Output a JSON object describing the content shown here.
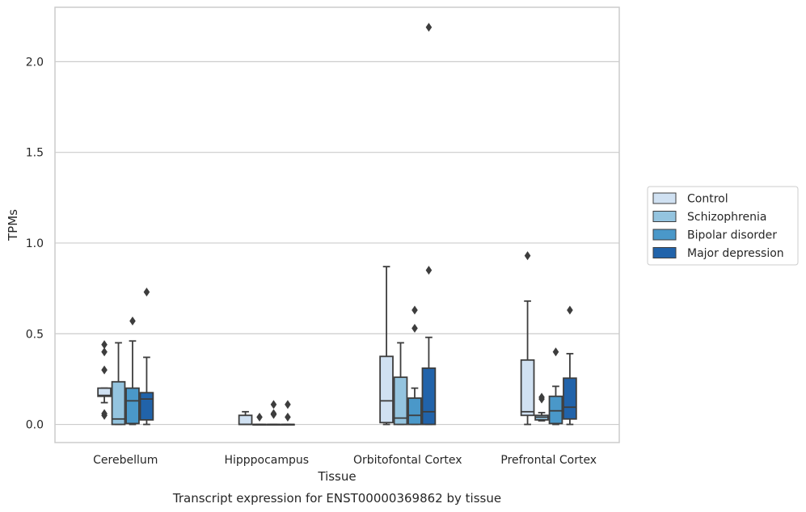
{
  "chart_data": {
    "type": "box",
    "title": "",
    "caption": "Transcript expression for ENST00000369862 by tissue",
    "xlabel": "Tissue",
    "ylabel": "TPMs",
    "ylim": [
      -0.1,
      2.3
    ],
    "yticks": [
      0.0,
      0.5,
      1.0,
      1.5,
      2.0
    ],
    "ytick_labels": [
      "0.0",
      "0.5",
      "1.0",
      "1.5",
      "2.0"
    ],
    "grid": "y",
    "legend_position": "right",
    "categories": [
      "Cerebellum",
      "Hipppocampus",
      "Orbitofontal Cortex",
      "Prefrontal Cortex"
    ],
    "series": [
      {
        "name": "Control",
        "color": "#d0e1f2",
        "boxes": [
          {
            "whislo": 0.12,
            "q1": 0.155,
            "med": 0.16,
            "q3": 0.2,
            "whishi": 0.2,
            "fliers": [
              0.44,
              0.4,
              0.3,
              0.06,
              0.05
            ]
          },
          {
            "whislo": 0.0,
            "q1": 0.0,
            "med": 0.0,
            "q3": 0.05,
            "whishi": 0.07,
            "fliers": []
          },
          {
            "whislo": 0.0,
            "q1": 0.01,
            "med": 0.13,
            "q3": 0.375,
            "whishi": 0.87,
            "fliers": []
          },
          {
            "whislo": 0.0,
            "q1": 0.05,
            "med": 0.07,
            "q3": 0.355,
            "whishi": 0.68,
            "fliers": [
              0.93
            ]
          }
        ]
      },
      {
        "name": "Schizophrenia",
        "color": "#94c4df",
        "boxes": [
          {
            "whislo": 0.0,
            "q1": 0.0,
            "med": 0.03,
            "q3": 0.235,
            "whishi": 0.45,
            "fliers": []
          },
          {
            "whislo": 0.0,
            "q1": 0.0,
            "med": 0.0,
            "q3": 0.0,
            "whishi": 0.0,
            "fliers": [
              0.04
            ]
          },
          {
            "whislo": 0.0,
            "q1": 0.0,
            "med": 0.035,
            "q3": 0.26,
            "whishi": 0.45,
            "fliers": []
          },
          {
            "whislo": 0.02,
            "q1": 0.025,
            "med": 0.04,
            "q3": 0.05,
            "whishi": 0.065,
            "fliers": [
              0.15,
              0.14
            ]
          }
        ]
      },
      {
        "name": "Bipolar disorder",
        "color": "#4a98c9",
        "boxes": [
          {
            "whislo": 0.0,
            "q1": 0.005,
            "med": 0.13,
            "q3": 0.2,
            "whishi": 0.46,
            "fliers": [
              0.57
            ]
          },
          {
            "whislo": 0.0,
            "q1": 0.0,
            "med": 0.0,
            "q3": 0.0,
            "whishi": 0.0,
            "fliers": [
              0.11,
              0.06,
              0.055
            ]
          },
          {
            "whislo": 0.0,
            "q1": 0.0,
            "med": 0.05,
            "q3": 0.145,
            "whishi": 0.2,
            "fliers": [
              0.63,
              0.53
            ]
          },
          {
            "whislo": 0.0,
            "q1": 0.005,
            "med": 0.075,
            "q3": 0.155,
            "whishi": 0.21,
            "fliers": [
              0.4
            ]
          }
        ]
      },
      {
        "name": "Major depression",
        "color": "#2163aa",
        "boxes": [
          {
            "whislo": 0.0,
            "q1": 0.025,
            "med": 0.14,
            "q3": 0.175,
            "whishi": 0.37,
            "fliers": [
              0.73
            ]
          },
          {
            "whislo": 0.0,
            "q1": 0.0,
            "med": 0.0,
            "q3": 0.0,
            "whishi": 0.0,
            "fliers": [
              0.11,
              0.04
            ]
          },
          {
            "whislo": 0.0,
            "q1": 0.0,
            "med": 0.07,
            "q3": 0.31,
            "whishi": 0.48,
            "fliers": [
              2.19,
              0.85
            ]
          },
          {
            "whislo": 0.0,
            "q1": 0.03,
            "med": 0.095,
            "q3": 0.255,
            "whishi": 0.39,
            "fliers": [
              0.63
            ]
          }
        ]
      }
    ]
  }
}
